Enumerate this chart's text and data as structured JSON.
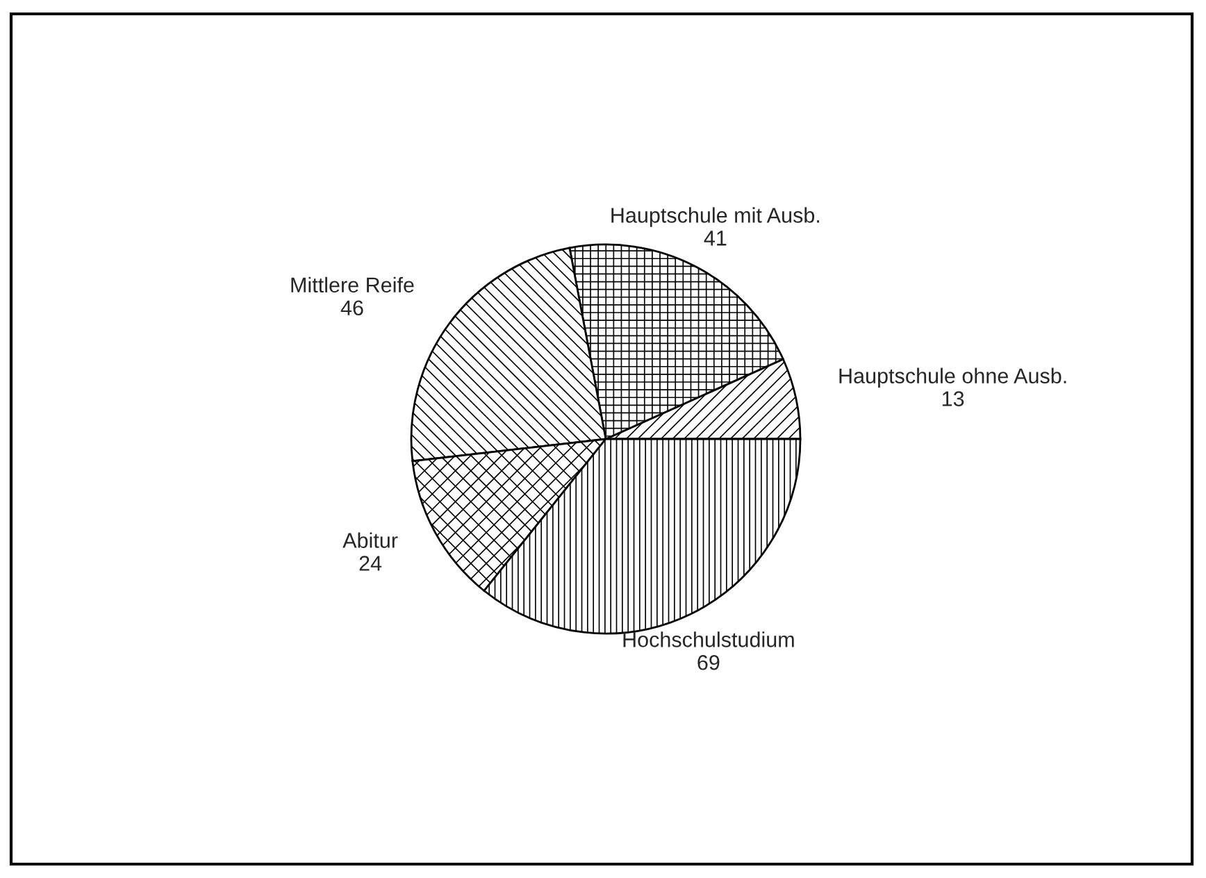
{
  "chart_data": {
    "type": "pie",
    "categories": [
      "Hauptschule ohne Ausb.",
      "Hauptschule mit Ausb.",
      "Mittlere Reife",
      "Abitur",
      "Hochschulstudium"
    ],
    "values": [
      13,
      41,
      46,
      24,
      69
    ],
    "data_labels": true
  }
}
